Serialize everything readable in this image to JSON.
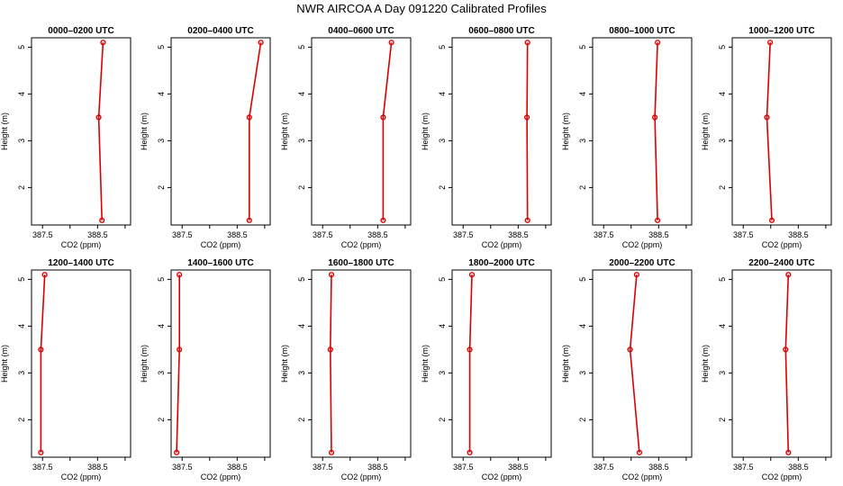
{
  "figure_title": "NWR AIRCOA A  Day 091220  Calibrated Profiles",
  "colors": {
    "profile": "#dd0000",
    "axes": "#000000",
    "background": "#ffffff"
  },
  "chart_data": [
    {
      "type": "line",
      "title": "0000–0200 UTC",
      "xlabel": "CO2 (ppm)",
      "ylabel": "Height (m)",
      "xlim": [
        387.3,
        389.1
      ],
      "ylim": [
        1.2,
        5.2
      ],
      "xticks": [
        "387.5",
        "388.5"
      ],
      "yticks": [
        "2",
        "3",
        "4",
        "5"
      ],
      "x": [
        388.58,
        388.52,
        388.6
      ],
      "y": [
        1.3,
        3.5,
        5.1
      ]
    },
    {
      "type": "line",
      "title": "0200–0400 UTC",
      "xlabel": "CO2 (ppm)",
      "ylabel": "Height (m)",
      "xlim": [
        387.3,
        389.1
      ],
      "ylim": [
        1.2,
        5.2
      ],
      "xticks": [
        "387.5",
        "388.5"
      ],
      "yticks": [
        "2",
        "3",
        "4",
        "5"
      ],
      "x": [
        388.72,
        388.72,
        388.93
      ],
      "y": [
        1.3,
        3.5,
        5.1
      ]
    },
    {
      "type": "line",
      "title": "0400–0600 UTC",
      "xlabel": "CO2 (ppm)",
      "ylabel": "Height (m)",
      "xlim": [
        387.3,
        389.1
      ],
      "ylim": [
        1.2,
        5.2
      ],
      "xticks": [
        "387.5",
        "388.5"
      ],
      "yticks": [
        "2",
        "3",
        "4",
        "5"
      ],
      "x": [
        388.6,
        388.6,
        388.75
      ],
      "y": [
        1.3,
        3.5,
        5.1
      ]
    },
    {
      "type": "line",
      "title": "0600–0800 UTC",
      "xlabel": "CO2 (ppm)",
      "ylabel": "Height (m)",
      "xlim": [
        387.3,
        389.1
      ],
      "ylim": [
        1.2,
        5.2
      ],
      "xticks": [
        "387.5",
        "388.5"
      ],
      "yticks": [
        "2",
        "3",
        "4",
        "5"
      ],
      "x": [
        388.67,
        388.66,
        388.67
      ],
      "y": [
        1.3,
        3.5,
        5.1
      ]
    },
    {
      "type": "line",
      "title": "0800–1000 UTC",
      "xlabel": "CO2 (ppm)",
      "ylabel": "Height (m)",
      "xlim": [
        387.3,
        389.1
      ],
      "ylim": [
        1.2,
        5.2
      ],
      "xticks": [
        "387.5",
        "388.5"
      ],
      "yticks": [
        "2",
        "3",
        "4",
        "5"
      ],
      "x": [
        388.48,
        388.43,
        388.48
      ],
      "y": [
        1.3,
        3.5,
        5.1
      ]
    },
    {
      "type": "line",
      "title": "1000–1200 UTC",
      "xlabel": "CO2 (ppm)",
      "ylabel": "Height (m)",
      "xlim": [
        387.3,
        389.1
      ],
      "ylim": [
        1.2,
        5.2
      ],
      "xticks": [
        "387.5",
        "388.5"
      ],
      "yticks": [
        "2",
        "3",
        "4",
        "5"
      ],
      "x": [
        388.02,
        387.93,
        387.99
      ],
      "y": [
        1.3,
        3.5,
        5.1
      ]
    },
    {
      "type": "line",
      "title": "1200–1400 UTC",
      "xlabel": "CO2 (ppm)",
      "ylabel": "Height (m)",
      "xlim": [
        387.3,
        389.1
      ],
      "ylim": [
        1.2,
        5.2
      ],
      "xticks": [
        "387.5",
        "388.5"
      ],
      "yticks": [
        "2",
        "3",
        "4",
        "5"
      ],
      "x": [
        387.47,
        387.47,
        387.54
      ],
      "y": [
        1.3,
        3.5,
        5.1
      ]
    },
    {
      "type": "line",
      "title": "1400–1600 UTC",
      "xlabel": "CO2 (ppm)",
      "ylabel": "Height (m)",
      "xlim": [
        387.3,
        389.1
      ],
      "ylim": [
        1.2,
        5.2
      ],
      "xticks": [
        "387.5",
        "388.5"
      ],
      "yticks": [
        "2",
        "3",
        "4",
        "5"
      ],
      "x": [
        387.4,
        387.45,
        387.45
      ],
      "y": [
        1.3,
        3.5,
        5.1
      ]
    },
    {
      "type": "line",
      "title": "1600–1800 UTC",
      "xlabel": "CO2 (ppm)",
      "ylabel": "Height (m)",
      "xlim": [
        387.3,
        389.1
      ],
      "ylim": [
        1.2,
        5.2
      ],
      "xticks": [
        "387.5",
        "388.5"
      ],
      "yticks": [
        "2",
        "3",
        "4",
        "5"
      ],
      "x": [
        387.66,
        387.64,
        387.66
      ],
      "y": [
        1.3,
        3.5,
        5.1
      ]
    },
    {
      "type": "line",
      "title": "1800–2000 UTC",
      "xlabel": "CO2 (ppm)",
      "ylabel": "Height (m)",
      "xlim": [
        387.3,
        389.1
      ],
      "ylim": [
        1.2,
        5.2
      ],
      "xticks": [
        "387.5",
        "388.5"
      ],
      "yticks": [
        "2",
        "3",
        "4",
        "5"
      ],
      "x": [
        387.62,
        387.62,
        387.66
      ],
      "y": [
        1.3,
        3.5,
        5.1
      ]
    },
    {
      "type": "line",
      "title": "2000–2200 UTC",
      "xlabel": "CO2 (ppm)",
      "ylabel": "Height (m)",
      "xlim": [
        387.3,
        389.1
      ],
      "ylim": [
        1.2,
        5.2
      ],
      "xticks": [
        "387.5",
        "388.5"
      ],
      "yticks": [
        "2",
        "3",
        "4",
        "5"
      ],
      "x": [
        388.15,
        387.98,
        388.1
      ],
      "y": [
        1.3,
        3.5,
        5.1
      ]
    },
    {
      "type": "line",
      "title": "2200–2400 UTC",
      "xlabel": "CO2 (ppm)",
      "ylabel": "Height (m)",
      "xlim": [
        387.3,
        389.1
      ],
      "ylim": [
        1.2,
        5.2
      ],
      "xticks": [
        "387.5",
        "388.5"
      ],
      "yticks": [
        "2",
        "3",
        "4",
        "5"
      ],
      "x": [
        388.32,
        388.27,
        388.32
      ],
      "y": [
        1.3,
        3.5,
        5.1
      ]
    }
  ]
}
